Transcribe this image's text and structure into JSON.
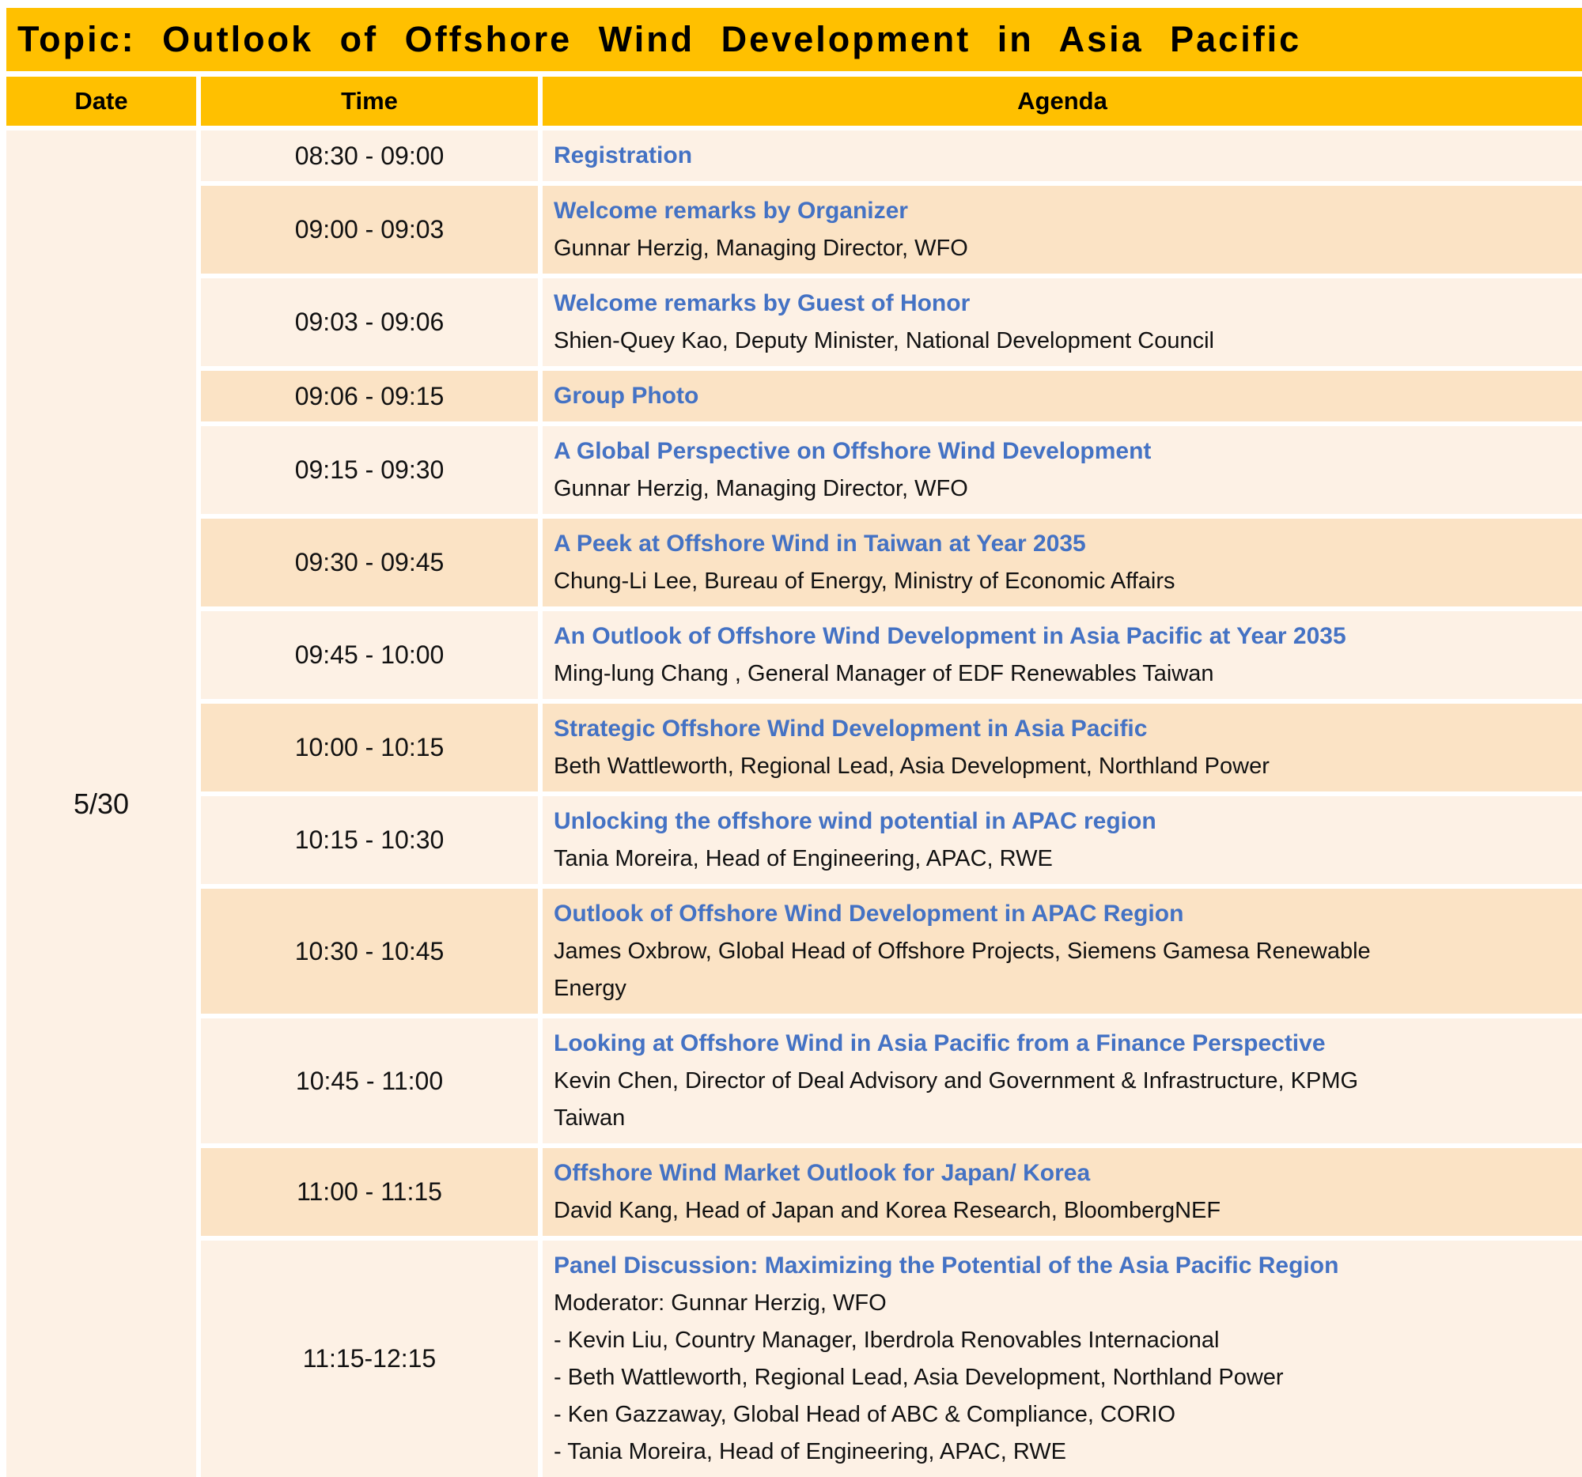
{
  "title": "Topic: Outlook of Offshore Wind Development in Asia Pacific",
  "colors": {
    "header_orange": "#FFC000",
    "band_light": "#FDF1E5",
    "band_dark": "#FBE3C5",
    "session_title_blue": "#4472C4",
    "text_black": "#111111"
  },
  "table": {
    "headers": {
      "date": "Date",
      "time": "Time",
      "agenda": "Agenda"
    },
    "date": "5/30",
    "rows": [
      {
        "time": "08:30 - 09:00",
        "title": "Registration",
        "details": []
      },
      {
        "time": "09:00 - 09:03",
        "title": "Welcome remarks by Organizer",
        "details": [
          "Gunnar Herzig, Managing Director, WFO"
        ]
      },
      {
        "time": "09:03 - 09:06",
        "title": "Welcome remarks by Guest of Honor",
        "details": [
          "Shien-Quey Kao, Deputy Minister, National Development Council"
        ]
      },
      {
        "time": "09:06 - 09:15",
        "title": "Group Photo",
        "details": []
      },
      {
        "time": "09:15 - 09:30",
        "title": "A Global Perspective on Offshore Wind Development",
        "details": [
          "Gunnar Herzig, Managing Director, WFO"
        ]
      },
      {
        "time": "09:30 - 09:45",
        "title": "A Peek at Offshore Wind in Taiwan at Year 2035",
        "details": [
          "Chung-Li Lee, Bureau of Energy, Ministry of Economic Affairs"
        ]
      },
      {
        "time": "09:45 - 10:00",
        "title": "An Outlook of Offshore Wind Development in Asia Pacific at Year 2035",
        "details": [
          "Ming-lung Chang , General Manager of EDF Renewables Taiwan"
        ]
      },
      {
        "time": "10:00 - 10:15",
        "title": "Strategic Offshore Wind Development in Asia Pacific",
        "details": [
          "Beth Wattleworth, Regional Lead, Asia Development, Northland Power"
        ]
      },
      {
        "time": "10:15 - 10:30",
        "title": "Unlocking the offshore wind potential in APAC region",
        "details": [
          "Tania Moreira, Head of Engineering, APAC, RWE"
        ]
      },
      {
        "time": "10:30 - 10:45",
        "title": "Outlook of Offshore Wind Development in APAC Region",
        "details": [
          "James Oxbrow, Global Head of Offshore Projects, Siemens Gamesa Renewable",
          "Energy"
        ]
      },
      {
        "time": "10:45 - 11:00",
        "title": "Looking at Offshore Wind in Asia Pacific from a Finance Perspective",
        "details": [
          "Kevin Chen, Director of Deal Advisory and Government & Infrastructure, KPMG",
          "Taiwan"
        ]
      },
      {
        "time": "11:00 - 11:15",
        "title": "Offshore Wind Market Outlook for Japan/ Korea",
        "details": [
          "David Kang, Head of Japan and Korea Research, BloombergNEF"
        ]
      },
      {
        "time": "11:15-12:15",
        "title": "Panel Discussion: Maximizing the Potential of the Asia Pacific Region",
        "details": [
          "Moderator: Gunnar Herzig, WFO",
          "- Kevin Liu, Country Manager, Iberdrola Renovables Internacional",
          "- Beth Wattleworth, Regional Lead, Asia Development, Northland Power",
          "- Ken Gazzaway, Global Head of ABC & Compliance, CORIO",
          "- Tania Moreira, Head of Engineering, APAC, RWE"
        ]
      }
    ]
  }
}
